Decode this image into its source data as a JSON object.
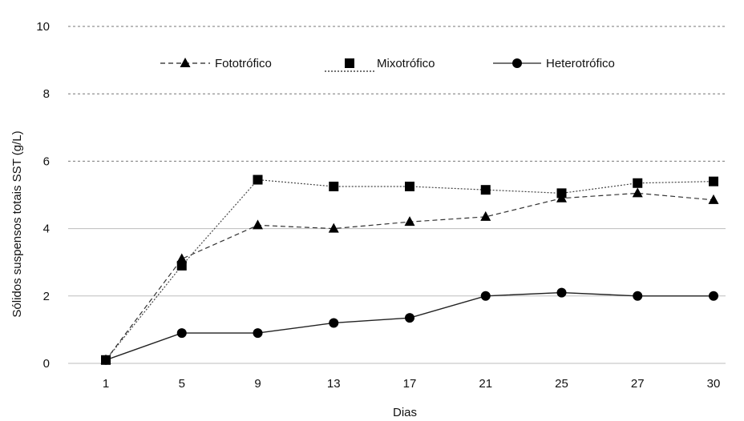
{
  "chart_data": {
    "type": "line",
    "title": "",
    "xlabel": "Dias",
    "ylabel": "Sólidos suspensos totais SST (g/L)",
    "categories": [
      "1",
      "5",
      "9",
      "13",
      "17",
      "21",
      "25",
      "27",
      "30"
    ],
    "ylim": [
      0,
      10
    ],
    "yticks": [
      0,
      2,
      4,
      6,
      8,
      10
    ],
    "grid": true,
    "legend_position": "top",
    "series": [
      {
        "name": "Fototrófico",
        "values": [
          0.1,
          3.1,
          4.1,
          4.0,
          4.2,
          4.35,
          4.9,
          5.05,
          4.85
        ],
        "marker": "triangle",
        "line": "dashed",
        "color": "#333333"
      },
      {
        "name": "Mixotrófico",
        "values": [
          0.1,
          2.9,
          5.45,
          5.25,
          5.25,
          5.15,
          5.05,
          5.35,
          5.4
        ],
        "marker": "square",
        "line": "dotted",
        "color": "#444444"
      },
      {
        "name": "Heterotrófico",
        "values": [
          0.1,
          0.9,
          0.9,
          1.2,
          1.35,
          2.0,
          2.1,
          2.0,
          2.0
        ],
        "marker": "circle",
        "line": "solid",
        "color": "#222222"
      }
    ]
  }
}
